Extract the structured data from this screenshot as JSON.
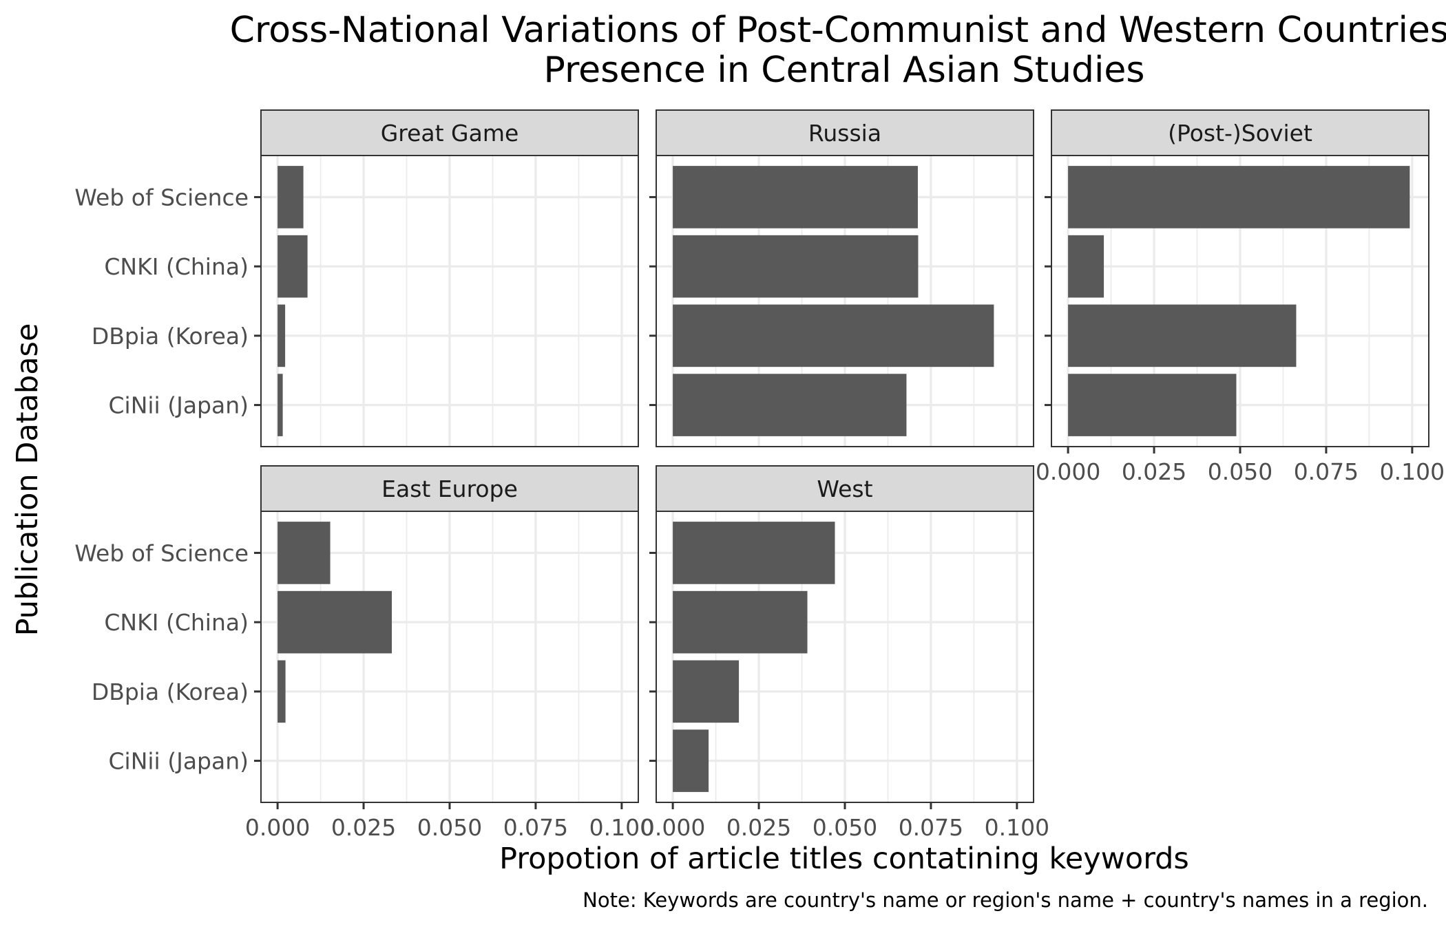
{
  "chart_data": {
    "type": "bar",
    "orientation": "horizontal",
    "title_lines": [
      "Cross-National Variations of Post-Communist and Western Countries'",
      "Presence in Central Asian Studies"
    ],
    "xlabel": "Propotion of article titles contatining keywords",
    "ylabel": "Publication Database",
    "caption": "Note: Keywords are country's name or region's name + country's names in a region.",
    "categories": [
      "Web of Science",
      "CNKI (China)",
      "DBpia (Korea)",
      "CiNii (Japan)"
    ],
    "xlim": [
      0,
      0.1
    ],
    "x_ticks": [
      0,
      0.025,
      0.05,
      0.075,
      0.1
    ],
    "x_tick_labels": [
      "0.000",
      "0.025",
      "0.050",
      "0.075",
      "0.100"
    ],
    "grid": true,
    "theme": "bw",
    "bar_color": "#595959",
    "facets": [
      {
        "name": "Great Game",
        "values": [
          0.0075,
          0.0087,
          0.0022,
          0.0015
        ]
      },
      {
        "name": "Russia",
        "values": [
          0.0712,
          0.0713,
          0.0933,
          0.0679
        ]
      },
      {
        "name": "(Post-)Soviet",
        "values": [
          0.0993,
          0.0104,
          0.0663,
          0.0489
        ]
      },
      {
        "name": "East Europe",
        "values": [
          0.0153,
          0.0332,
          0.0023,
          0.0
        ]
      },
      {
        "name": "West",
        "values": [
          0.0471,
          0.0391,
          0.0192,
          0.0104
        ]
      }
    ]
  }
}
